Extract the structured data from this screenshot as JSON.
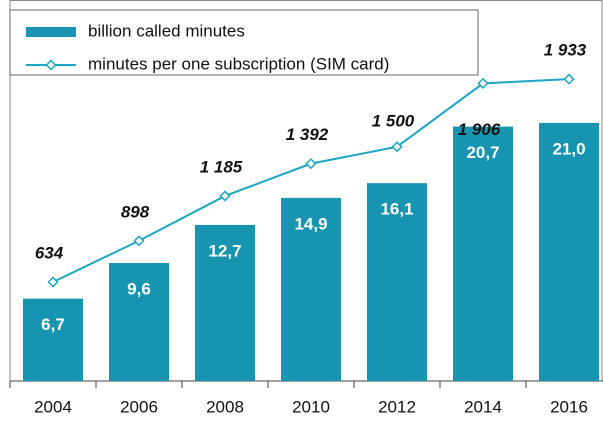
{
  "chart_data": {
    "type": "bar_line",
    "categories": [
      "2004",
      "2006",
      "2008",
      "2010",
      "2012",
      "2014",
      "2016"
    ],
    "series": [
      {
        "name": "billion called minutes",
        "type": "bar",
        "color": "#1795b0",
        "values": [
          6.7,
          9.6,
          12.7,
          14.9,
          16.1,
          20.7,
          21.0
        ],
        "value_labels": [
          "6,7",
          "9,6",
          "12,7",
          "14,9",
          "16,1",
          "20,7",
          "21,0"
        ]
      },
      {
        "name": "minutes per one subscription (SIM card)",
        "type": "line",
        "axis": "y2",
        "color": "#1aa6c4",
        "values": [
          634,
          898,
          1185,
          1392,
          1500,
          1906,
          1933
        ],
        "value_labels": [
          "634",
          "898",
          "1 185",
          "1 392",
          "1 500",
          "1 906",
          "1 933"
        ]
      }
    ],
    "ylim": [
      0,
      31
    ],
    "y2lim": [
      0,
      2440
    ],
    "legend": "upper left"
  }
}
